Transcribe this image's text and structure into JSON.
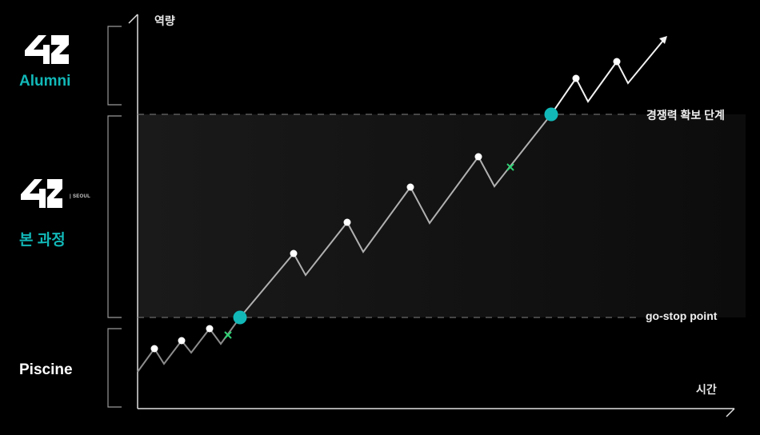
{
  "axes": {
    "y_label": "역량",
    "x_label": "시간"
  },
  "stages": {
    "alumni": "Alumni",
    "main_course": "본 과정",
    "piscine": "Piscine"
  },
  "logos": {
    "alumni_logo": "42",
    "seoul_logo": "42",
    "seoul_tag": "| SEOUL"
  },
  "thresholds": {
    "upper": "경쟁력 확보 단계",
    "lower": "go-stop point"
  },
  "colors": {
    "accent": "#12b8b8",
    "band": "#141414",
    "line": "#bdbdbd",
    "cross": "#2fcf73",
    "background": "#000000"
  }
}
